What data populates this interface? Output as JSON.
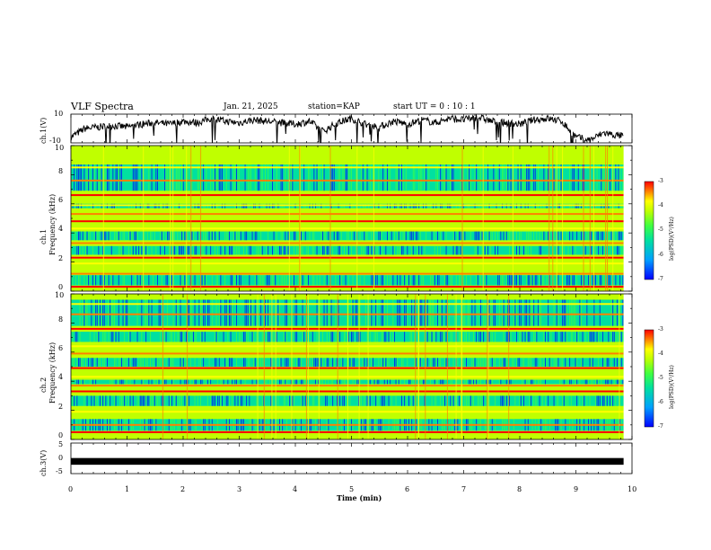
{
  "header": {
    "title": "VLF Spectra",
    "date": "Jan. 21, 2025",
    "station": "station=KAP",
    "start_ut": "start UT =  0 : 10 : 1"
  },
  "chart_data": [
    {
      "type": "line",
      "name": "ch1-voltage",
      "ylabel": "ch.1(V)",
      "ylim": [
        -10,
        10
      ],
      "tick_labels": [
        "10",
        "-10"
      ],
      "x_range": [
        0,
        9.85
      ],
      "description_series_values_sampled_every_0_25_min": [
        -6,
        0,
        1,
        2,
        1,
        3,
        4,
        3,
        5,
        4,
        7,
        5,
        4,
        6,
        5,
        4,
        3,
        5,
        -2,
        4,
        7,
        3,
        1,
        5,
        3,
        6,
        4,
        7,
        6,
        8,
        5,
        4,
        3,
        6,
        7,
        5,
        -6,
        -8,
        -3,
        -5
      ]
    },
    {
      "type": "heatmap",
      "name": "ch1-spectrogram",
      "ylabel": [
        "ch.1",
        "Frequency (kHz)"
      ],
      "ylim": [
        0,
        10
      ],
      "yticks": [
        "0",
        "2",
        "4",
        "6",
        "8",
        "10"
      ],
      "bright_bands_khz": [
        0.3,
        1.2,
        1.9,
        2.3,
        3.3,
        4.3,
        4.8,
        5.3,
        5.9,
        6.6,
        7.6,
        8.5
      ],
      "dark_regions_khz": [
        [
          0.4,
          1.1
        ],
        [
          2.5,
          3.1
        ],
        [
          3.5,
          4.1
        ],
        [
          5.7,
          6.0
        ],
        [
          6.9,
          8.7
        ]
      ],
      "colorbar": {
        "ticks": [
          "-3",
          "-4",
          "-5",
          "-6",
          "-7"
        ],
        "label": "log(PSD)(V²/Hz)"
      }
    },
    {
      "type": "heatmap",
      "name": "ch2-spectrogram",
      "ylabel": [
        "ch.2",
        "Frequency (kHz)"
      ],
      "ylim": [
        0,
        10
      ],
      "yticks": [
        "0",
        "2",
        "4",
        "6",
        "8",
        "10"
      ],
      "bright_bands_khz": [
        0.5,
        1.0,
        1.9,
        3.3,
        3.7,
        4.3,
        4.9,
        5.9,
        6.4,
        7.6,
        8.6,
        9.3
      ],
      "dark_regions_khz": [
        [
          0.6,
          1.4
        ],
        [
          2.3,
          3.0
        ],
        [
          3.8,
          4.1
        ],
        [
          5.0,
          5.6
        ],
        [
          6.7,
          7.4
        ],
        [
          7.8,
          9.6
        ]
      ],
      "colorbar": {
        "ticks": [
          "-3",
          "-4",
          "-5",
          "-6",
          "-7"
        ],
        "label": "log(PSD)(V²/Hz)"
      }
    },
    {
      "type": "line",
      "name": "ch3-voltage",
      "ylabel": "ch.3(V)",
      "ylim": [
        -5,
        5
      ],
      "yticks": [
        "5",
        "0",
        "-5"
      ],
      "level": -1,
      "band_halfwidth": 0.55
    }
  ],
  "x_axis": {
    "label": "Time (min)",
    "range": [
      0,
      10
    ],
    "ticks": [
      "0",
      "1",
      "2",
      "3",
      "4",
      "5",
      "6",
      "7",
      "8",
      "9",
      "10"
    ]
  },
  "colors": {
    "colormap": [
      "#0000ff",
      "#00a0ff",
      "#00e0a0",
      "#40ff40",
      "#c0ff00",
      "#ffff00",
      "#ff8000",
      "#ff0000"
    ]
  }
}
